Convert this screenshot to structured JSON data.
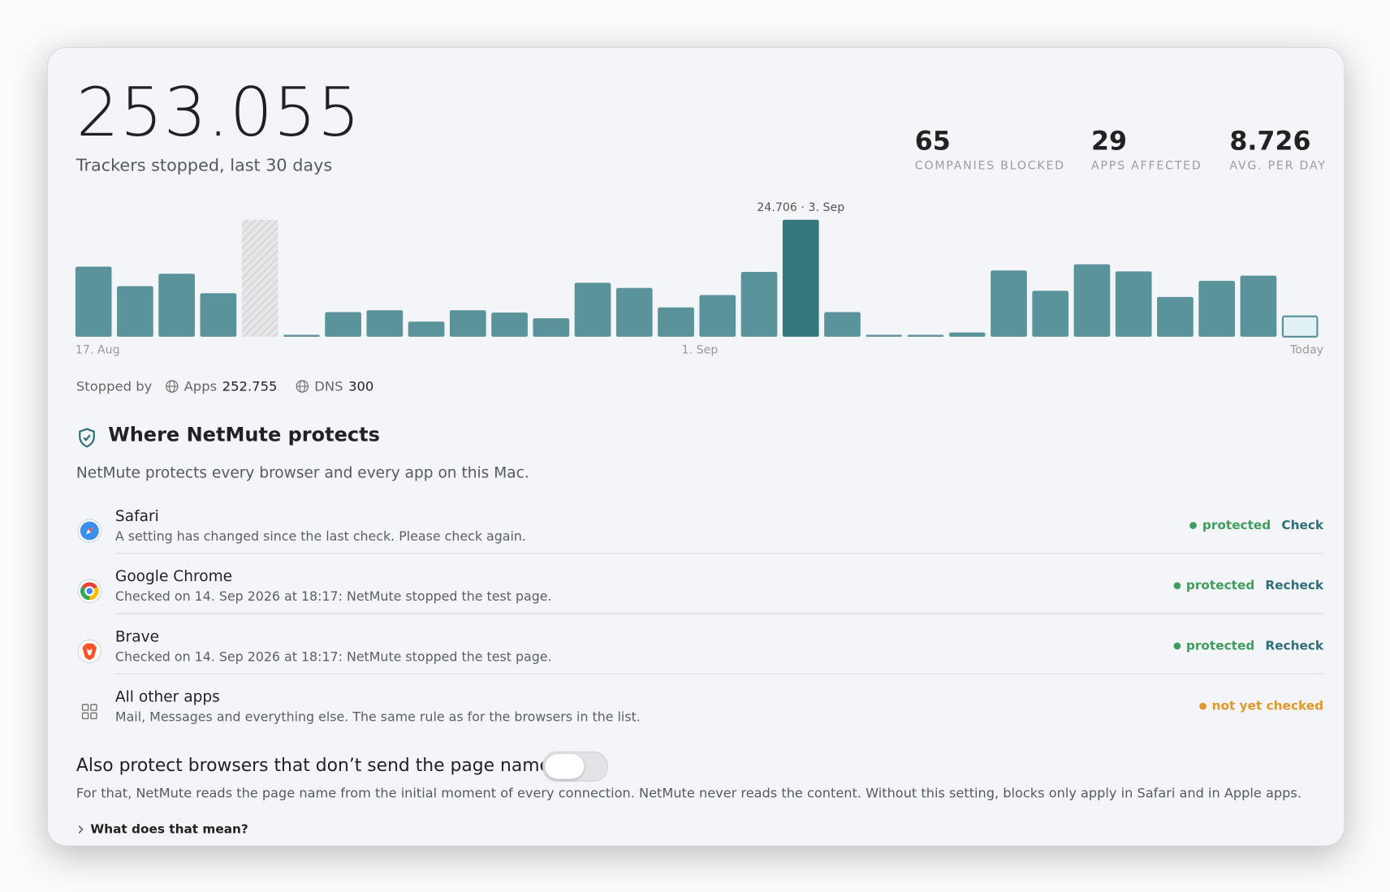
{
  "header": {
    "total": "253.055",
    "subtitle": "Trackers stopped, last 30 days"
  },
  "stats": [
    {
      "value": "65",
      "label": "COMPANIES BLOCKED"
    },
    {
      "value": "29",
      "label": "APPS AFFECTED"
    },
    {
      "value": "8.726",
      "label": "AVG. PER DAY"
    }
  ],
  "chart_data": {
    "type": "bar",
    "annotation": "24.706 · 3. Sep",
    "categories": [
      "17. Aug",
      null,
      null,
      null,
      null,
      null,
      null,
      null,
      null,
      null,
      null,
      null,
      null,
      null,
      null,
      "1. Sep",
      null,
      null,
      null,
      null,
      null,
      null,
      null,
      null,
      null,
      null,
      null,
      null,
      null,
      "Today"
    ],
    "values": [
      14800,
      10700,
      13300,
      9200,
      null,
      400,
      5200,
      5600,
      3200,
      5600,
      5100,
      3900,
      11400,
      10300,
      6200,
      8800,
      13700,
      24706,
      5200,
      400,
      400,
      900,
      14000,
      9700,
      15300,
      13800,
      8400,
      11800,
      12900,
      4500
    ],
    "color": "#5a939a",
    "highlight_color": "#35797f"
  },
  "stopped_by": {
    "label": "Stopped by",
    "items": [
      {
        "name": "Apps",
        "value": "252.755"
      },
      {
        "name": "DNS",
        "value": "300"
      }
    ]
  },
  "protection": {
    "title": "Where NetMute protects",
    "description": "NetMute protects every browser and every app on this Mac.",
    "items": [
      {
        "name": "Safari",
        "detail": "A setting has changed since the last check. Please check again.",
        "status": "protected",
        "status_color": "#3f9d5d",
        "action": "Check"
      },
      {
        "name": "Google Chrome",
        "detail": "Checked on 14. Sep 2026 at 18:17: NetMute stopped the test page.",
        "status": "protected",
        "status_color": "#3f9d5d",
        "action": "Recheck"
      },
      {
        "name": "Brave",
        "detail": "Checked on 14. Sep 2026 at 18:17: NetMute stopped the test page.",
        "status": "protected",
        "status_color": "#3f9d5d",
        "action": "Recheck"
      },
      {
        "name": "All other apps",
        "detail": "Mail, Messages and everything else. The same rule as for the browsers in the list.",
        "status": "not yet checked",
        "status_color": "#e0982e",
        "action": null
      }
    ]
  },
  "toggle": {
    "label": "Also protect browsers that don’t send the page name",
    "description": "For that, NetMute reads the page name from the initial moment of every connection. NetMute never reads the content. Without this setting, blocks only apply in Safari and in Apple apps.",
    "enabled": false
  },
  "disclosure": "What does that mean?"
}
